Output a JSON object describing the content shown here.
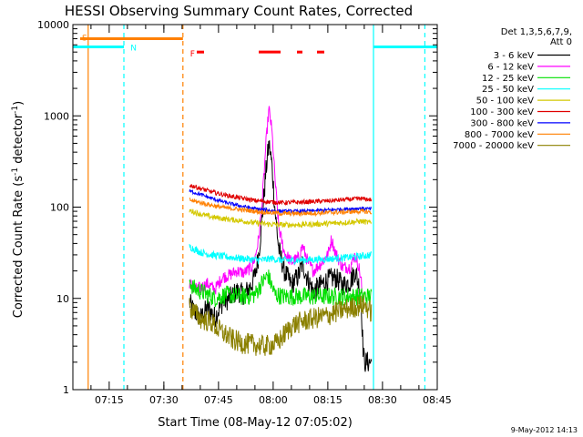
{
  "chart_data": {
    "type": "line",
    "title": "HESSI Observing Summary Count Rates, Corrected",
    "xlabel": "Start Time (08-May-12 07:05:02)",
    "ylabel_main": "Corrected Count Rate (s",
    "ylabel_sup1": "-1",
    "ylabel_mid": " detector",
    "ylabel_sup2": "-1",
    "ylabel_end": ")",
    "footer_date": "9-May-2012 14:13",
    "y_scale": "log",
    "ylim": [
      1,
      10000
    ],
    "xlim_minutes": [
      0,
      100
    ],
    "x_ticks": [
      {
        "label": "07:15",
        "t": 9.97
      },
      {
        "label": "07:30",
        "t": 24.97
      },
      {
        "label": "07:45",
        "t": 39.97
      },
      {
        "label": "08:00",
        "t": 54.97
      },
      {
        "label": "08:15",
        "t": 69.97
      },
      {
        "label": "08:30",
        "t": 84.97
      },
      {
        "label": "08:45",
        "t": 99.97
      }
    ],
    "y_ticks": [
      {
        "label": "1",
        "v": 1
      },
      {
        "label": "10",
        "v": 10
      },
      {
        "label": "100",
        "v": 100
      },
      {
        "label": "1000",
        "v": 1000
      },
      {
        "label": "10000",
        "v": 10000
      }
    ],
    "legend": {
      "header": [
        "Det 1,3,5,6,7,9,",
        "Att 0"
      ],
      "placement": "right",
      "items": [
        {
          "label": "3 - 6 keV",
          "color": "#000000"
        },
        {
          "label": "6 - 12 keV",
          "color": "#ff00ff"
        },
        {
          "label": "12 - 25 keV",
          "color": "#00e000"
        },
        {
          "label": "25 - 50 keV",
          "color": "#00ffff"
        },
        {
          "label": "50 - 100 keV",
          "color": "#d4c800"
        },
        {
          "label": "100 - 300 keV",
          "color": "#e00000"
        },
        {
          "label": "300 - 800 keV",
          "color": "#0000ff"
        },
        {
          "label": "800 - 7000 keV",
          "color": "#ff8000"
        },
        {
          "label": "7000 - 20000 keV",
          "color": "#8b8000"
        }
      ]
    },
    "flags": [
      {
        "code": "S",
        "color": "#ff8000",
        "start": 2,
        "end": 30.2,
        "value": 7000
      },
      {
        "code": "N",
        "color": "#00ffff",
        "start": 0,
        "end": 14,
        "value": 5700
      },
      {
        "code": "N",
        "color": "#00ffff",
        "start": 82.5,
        "end": 100,
        "value": 5700
      },
      {
        "code": "F",
        "color": "#ff0000",
        "segments": [
          [
            34,
            36
          ],
          [
            51,
            57
          ],
          [
            61.5,
            63
          ],
          [
            67,
            69
          ]
        ],
        "value": 5000
      }
    ],
    "flag_labels": [
      {
        "code": "S",
        "color": "#ff8000",
        "t": 1.5,
        "value": 7300
      },
      {
        "code": "N",
        "color": "#00ffff",
        "t": 14.8,
        "value": 5700
      },
      {
        "code": "F",
        "color": "#ff0000",
        "t": 31.2,
        "value": 4900
      }
    ],
    "vertical_markers": [
      {
        "t": 4.2,
        "color": "#ff8000",
        "style": "solid"
      },
      {
        "t": 14.0,
        "color": "#00ffff",
        "style": "dashed"
      },
      {
        "t": 30.2,
        "color": "#ff8000",
        "style": "dashed"
      },
      {
        "t": 82.5,
        "color": "#00ffff",
        "style": "solid"
      },
      {
        "t": 96.6,
        "color": "#00ffff",
        "style": "dashed"
      }
    ],
    "series": [
      {
        "name": "3 - 6 keV",
        "color": "#000000",
        "noise": 0.12,
        "points": [
          [
            32,
            9
          ],
          [
            33,
            7.5
          ],
          [
            35,
            6
          ],
          [
            37,
            8
          ],
          [
            39,
            6.2
          ],
          [
            41,
            9
          ],
          [
            43,
            10
          ],
          [
            45,
            12
          ],
          [
            47,
            11
          ],
          [
            49,
            14
          ],
          [
            50,
            18
          ],
          [
            51,
            30
          ],
          [
            52,
            80
          ],
          [
            53,
            250
          ],
          [
            53.8,
            500
          ],
          [
            54.6,
            300
          ],
          [
            55.5,
            90
          ],
          [
            56.5,
            35
          ],
          [
            58,
            20
          ],
          [
            60,
            14
          ],
          [
            62,
            18
          ],
          [
            63,
            24
          ],
          [
            64.5,
            16
          ],
          [
            66,
            12
          ],
          [
            68,
            14
          ],
          [
            70,
            16
          ],
          [
            72,
            17
          ],
          [
            74,
            14
          ],
          [
            76,
            15
          ],
          [
            77.5,
            20
          ],
          [
            78.5,
            14
          ],
          [
            79.2,
            8
          ],
          [
            79.6,
            3
          ],
          [
            80,
            2
          ],
          [
            82,
            2
          ]
        ]
      },
      {
        "name": "6 - 12 keV",
        "color": "#ff00ff",
        "noise": 0.07,
        "points": [
          [
            32,
            15
          ],
          [
            33,
            12.5
          ],
          [
            35,
            13
          ],
          [
            37,
            14.5
          ],
          [
            39,
            12.5
          ],
          [
            41,
            17
          ],
          [
            43,
            18
          ],
          [
            45,
            20
          ],
          [
            47,
            19
          ],
          [
            49,
            22
          ],
          [
            50,
            28
          ],
          [
            51,
            45
          ],
          [
            52,
            120
          ],
          [
            53,
            500
          ],
          [
            53.8,
            1200
          ],
          [
            54.6,
            700
          ],
          [
            55.5,
            200
          ],
          [
            56.5,
            60
          ],
          [
            58,
            32
          ],
          [
            60,
            25
          ],
          [
            62,
            28
          ],
          [
            63,
            38
          ],
          [
            64.5,
            25
          ],
          [
            66,
            20
          ],
          [
            68,
            24
          ],
          [
            70,
            30
          ],
          [
            71,
            45
          ],
          [
            72,
            32
          ],
          [
            74,
            22
          ],
          [
            76,
            22
          ],
          [
            77.5,
            30
          ],
          [
            78.5,
            22
          ],
          [
            79.2,
            15
          ],
          [
            79.5,
            8
          ]
        ]
      },
      {
        "name": "12 - 25 keV",
        "color": "#00e000",
        "noise": 0.1,
        "points": [
          [
            32,
            16
          ],
          [
            33,
            13
          ],
          [
            35,
            12
          ],
          [
            37,
            11
          ],
          [
            39,
            10
          ],
          [
            42,
            11
          ],
          [
            45,
            10.5
          ],
          [
            48,
            10.5
          ],
          [
            50,
            11
          ],
          [
            52,
            15
          ],
          [
            53.5,
            18
          ],
          [
            54.5,
            14
          ],
          [
            55.5,
            11
          ],
          [
            58,
            10.5
          ],
          [
            62,
            10.5
          ],
          [
            66,
            10.5
          ],
          [
            70,
            10.5
          ],
          [
            74,
            10.5
          ],
          [
            78,
            10.5
          ],
          [
            82,
            10.5
          ]
        ]
      },
      {
        "name": "25 - 50 keV",
        "color": "#00ffff",
        "noise": 0.04,
        "points": [
          [
            32,
            37
          ],
          [
            35,
            32
          ],
          [
            38,
            30
          ],
          [
            42,
            28.5
          ],
          [
            46,
            27.5
          ],
          [
            50,
            26.5
          ],
          [
            53,
            26.5
          ],
          [
            54.5,
            27.5
          ],
          [
            56,
            26.5
          ],
          [
            60,
            26
          ],
          [
            65,
            26.5
          ],
          [
            70,
            27
          ],
          [
            75,
            28
          ],
          [
            79,
            29
          ],
          [
            82,
            30
          ]
        ]
      },
      {
        "name": "50 - 100 keV",
        "color": "#d4c800",
        "noise": 0.03,
        "points": [
          [
            32,
            92
          ],
          [
            35,
            84
          ],
          [
            38,
            78
          ],
          [
            42,
            74
          ],
          [
            46,
            71
          ],
          [
            50,
            67
          ],
          [
            54,
            65
          ],
          [
            58,
            64
          ],
          [
            62,
            64
          ],
          [
            66,
            65
          ],
          [
            70,
            66
          ],
          [
            75,
            68
          ],
          [
            79,
            70
          ],
          [
            82,
            67
          ]
        ]
      },
      {
        "name": "100 - 300 keV",
        "color": "#e00000",
        "noise": 0.025,
        "points": [
          [
            32,
            175
          ],
          [
            35,
            160
          ],
          [
            38,
            147
          ],
          [
            42,
            135
          ],
          [
            46,
            126
          ],
          [
            50,
            118
          ],
          [
            54,
            114
          ],
          [
            58,
            112
          ],
          [
            62,
            113
          ],
          [
            66,
            115
          ],
          [
            70,
            117
          ],
          [
            74,
            120
          ],
          [
            79,
            124
          ],
          [
            82,
            120
          ]
        ]
      },
      {
        "name": "300 - 800 keV",
        "color": "#0000ff",
        "noise": 0.02,
        "points": [
          [
            32,
            150
          ],
          [
            35,
            138
          ],
          [
            38,
            125
          ],
          [
            42,
            112
          ],
          [
            46,
            103
          ],
          [
            50,
            96
          ],
          [
            54,
            92
          ],
          [
            58,
            90
          ],
          [
            62,
            90
          ],
          [
            66,
            91
          ],
          [
            70,
            93
          ],
          [
            74,
            95
          ],
          [
            79,
            97
          ],
          [
            82,
            95
          ]
        ]
      },
      {
        "name": "800 - 7000 keV",
        "color": "#ff8000",
        "noise": 0.025,
        "points": [
          [
            32,
            120
          ],
          [
            35,
            112
          ],
          [
            38,
            105
          ],
          [
            42,
            98
          ],
          [
            46,
            94
          ],
          [
            50,
            90
          ],
          [
            54,
            87
          ],
          [
            58,
            85
          ],
          [
            62,
            85
          ],
          [
            66,
            86
          ],
          [
            70,
            87
          ],
          [
            74,
            88
          ],
          [
            79,
            90
          ],
          [
            82,
            88
          ]
        ]
      },
      {
        "name": "7000 - 20000 keV",
        "color": "#8b8000",
        "noise": 0.12,
        "points": [
          [
            32,
            8
          ],
          [
            35,
            6
          ],
          [
            38,
            5.5
          ],
          [
            40,
            4.5
          ],
          [
            42,
            4
          ],
          [
            44,
            3.5
          ],
          [
            47,
            3.2
          ],
          [
            50,
            3.1
          ],
          [
            53,
            3
          ],
          [
            56,
            3.2
          ],
          [
            58,
            4
          ],
          [
            60,
            5
          ],
          [
            63,
            5.6
          ],
          [
            66,
            6
          ],
          [
            70,
            6.5
          ],
          [
            74,
            7.5
          ],
          [
            78,
            8.2
          ],
          [
            80,
            8.5
          ],
          [
            82,
            7
          ]
        ]
      }
    ]
  }
}
